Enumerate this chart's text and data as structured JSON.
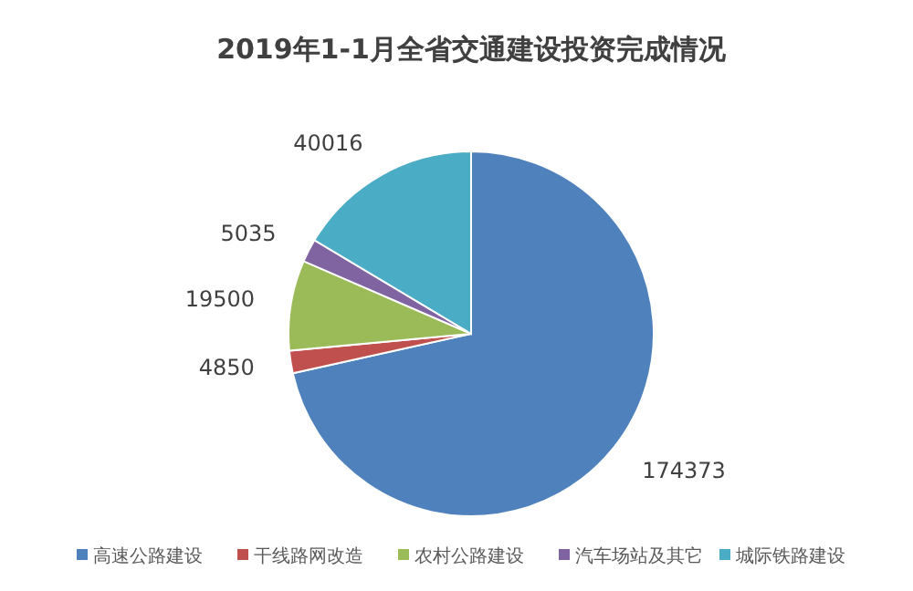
{
  "chart_data": {
    "type": "pie",
    "title": "2019年1-1月全省交通建设投资完成情况",
    "categories": [
      "高速公路建设",
      "干线路网改造",
      "农村公路建设",
      "汽车场站及其它",
      "城际铁路建设"
    ],
    "values": [
      174373,
      4850,
      19500,
      5035,
      40016
    ],
    "colors": [
      "#4f81bd",
      "#c0504d",
      "#9bbb59",
      "#8064a2",
      "#4bacc6"
    ],
    "data_labels": true,
    "legend": "bottom"
  }
}
